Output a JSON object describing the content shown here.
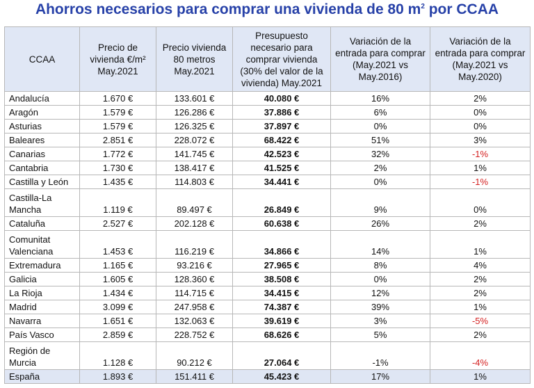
{
  "title": {
    "text": "Ahorros necesarios para comprar una vivienda de 80 m",
    "sup": "2",
    "suffix": " por CCAA"
  },
  "columns": [
    "CCAA",
    "Precio de vivienda €/m² May.2021",
    "Precio vivienda 80 metros May.2021",
    "Presupuesto necesario para comprar vivienda (30% del valor de la vivienda) May.2021",
    "Variación de la entrada para comprar (May.2021 vs May.2016)",
    "Variación de la entrada para comprar (May.2021 vs May.2020)"
  ],
  "rows": [
    {
      "ccaa": "Andalucía",
      "precio_m2": "1.670 €",
      "precio_80": "133.601 €",
      "presupuesto": "40.080 €",
      "var_2016": "16%",
      "var_2020": "2%"
    },
    {
      "ccaa": "Aragón",
      "precio_m2": "1.579 €",
      "precio_80": "126.286 €",
      "presupuesto": "37.886 €",
      "var_2016": "6%",
      "var_2020": "0%"
    },
    {
      "ccaa": "Asturias",
      "precio_m2": "1.579 €",
      "precio_80": "126.325 €",
      "presupuesto": "37.897 €",
      "var_2016": "0%",
      "var_2020": "0%"
    },
    {
      "ccaa": "Baleares",
      "precio_m2": "2.851 €",
      "precio_80": "228.072 €",
      "presupuesto": "68.422 €",
      "var_2016": "51%",
      "var_2020": "3%"
    },
    {
      "ccaa": "Canarias",
      "precio_m2": "1.772 €",
      "precio_80": "141.745 €",
      "presupuesto": "42.523 €",
      "var_2016": "32%",
      "var_2020": "-1%"
    },
    {
      "ccaa": "Cantabria",
      "precio_m2": "1.730 €",
      "precio_80": "138.417 €",
      "presupuesto": "41.525 €",
      "var_2016": "2%",
      "var_2020": "1%"
    },
    {
      "ccaa": "Castilla y León",
      "precio_m2": "1.435 €",
      "precio_80": "114.803 €",
      "presupuesto": "34.441 €",
      "var_2016": "0%",
      "var_2020": "-1%"
    },
    {
      "ccaa": "Castilla-La Mancha",
      "precio_m2": "1.119 €",
      "precio_80": "89.497 €",
      "presupuesto": "26.849 €",
      "var_2016": "9%",
      "var_2020": "0%",
      "tall": true
    },
    {
      "ccaa": "Cataluña",
      "precio_m2": "2.527 €",
      "precio_80": "202.128 €",
      "presupuesto": "60.638 €",
      "var_2016": "26%",
      "var_2020": "2%"
    },
    {
      "ccaa": "Comunitat Valenciana",
      "precio_m2": "1.453 €",
      "precio_80": "116.219 €",
      "presupuesto": "34.866 €",
      "var_2016": "14%",
      "var_2020": "1%",
      "tall": true
    },
    {
      "ccaa": "Extremadura",
      "precio_m2": "1.165 €",
      "precio_80": "93.216 €",
      "presupuesto": "27.965 €",
      "var_2016": "8%",
      "var_2020": "4%"
    },
    {
      "ccaa": "Galicia",
      "precio_m2": "1.605 €",
      "precio_80": "128.360 €",
      "presupuesto": "38.508 €",
      "var_2016": "0%",
      "var_2020": "2%"
    },
    {
      "ccaa": "La Rioja",
      "precio_m2": "1.434 €",
      "precio_80": "114.715 €",
      "presupuesto": "34.415 €",
      "var_2016": "12%",
      "var_2020": "2%"
    },
    {
      "ccaa": "Madrid",
      "precio_m2": "3.099 €",
      "precio_80": "247.958 €",
      "presupuesto": "74.387 €",
      "var_2016": "39%",
      "var_2020": "1%"
    },
    {
      "ccaa": "Navarra",
      "precio_m2": "1.651 €",
      "precio_80": "132.063 €",
      "presupuesto": "39.619 €",
      "var_2016": "3%",
      "var_2020": "-5%"
    },
    {
      "ccaa": "País Vasco",
      "precio_m2": "2.859 €",
      "precio_80": "228.752 €",
      "presupuesto": "68.626 €",
      "var_2016": "5%",
      "var_2020": "2%"
    },
    {
      "ccaa": "Región de Murcia",
      "precio_m2": "1.128 €",
      "precio_80": "90.212 €",
      "presupuesto": "27.064 €",
      "var_2016": "-1%",
      "var_2020": "-4%",
      "tall": true
    },
    {
      "ccaa": "España",
      "precio_m2": "1.893 €",
      "precio_80": "151.411 €",
      "presupuesto": "45.423 €",
      "var_2016": "17%",
      "var_2020": "1%",
      "total": true
    }
  ],
  "colors": {
    "title": "#2741a8",
    "header_bg": "#e0e7f5",
    "negative": "#d42020",
    "total_bg": "#dfe6f4"
  }
}
